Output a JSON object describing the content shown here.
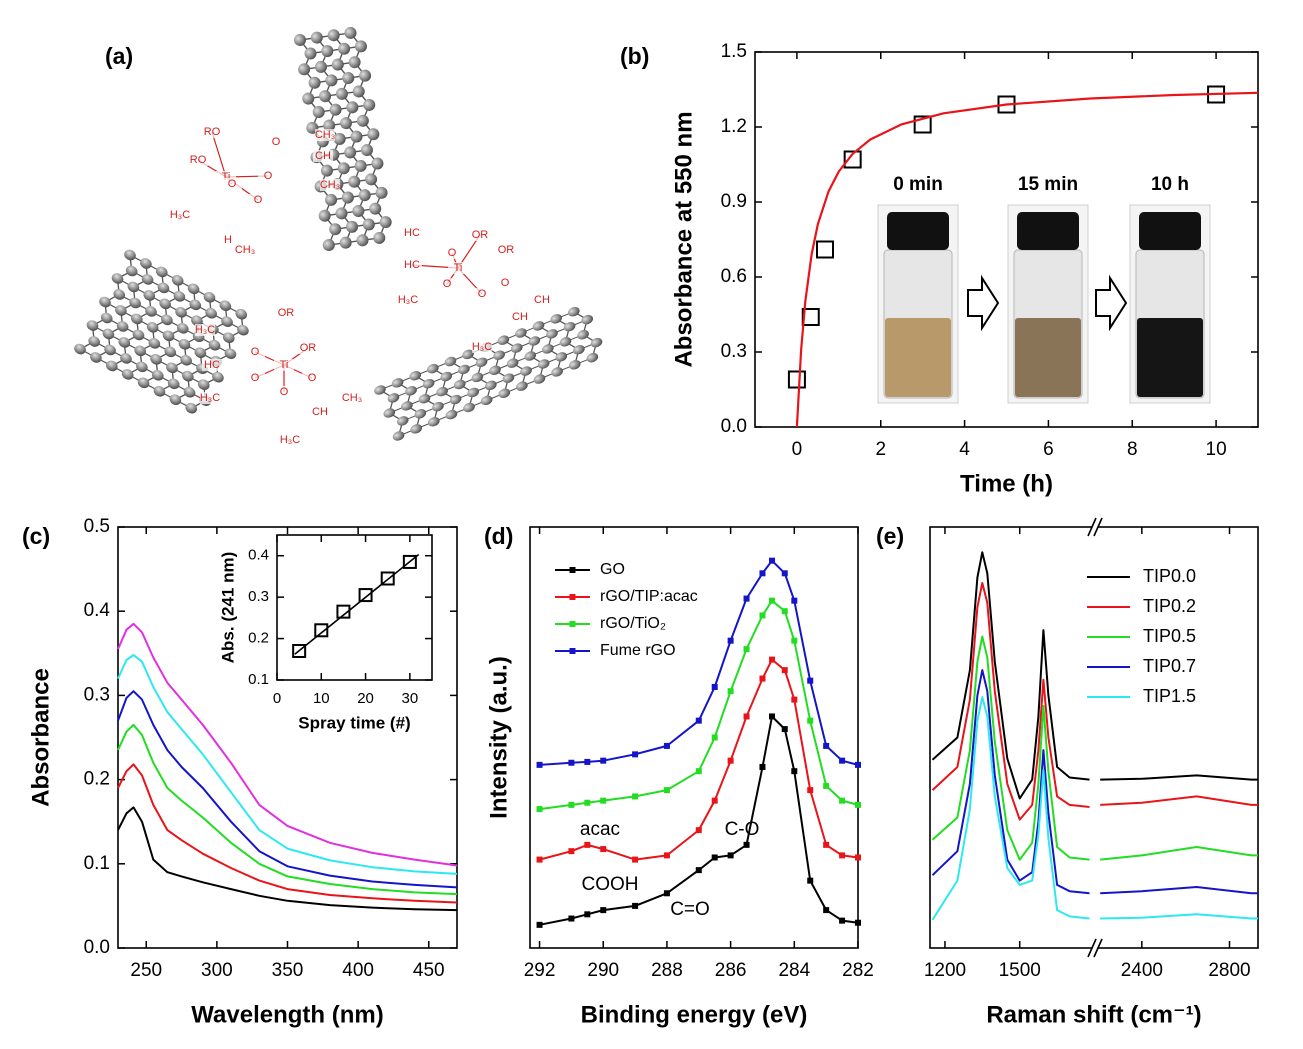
{
  "panel_a": {
    "panel_label": "(a)",
    "labels": [
      "RO",
      "RO",
      "Ti",
      "O",
      "O",
      "O",
      "O",
      "CH₃",
      "CH",
      "CH₃",
      "H₃C",
      "H",
      "CH₃",
      "HC",
      "O",
      "OR",
      "OR",
      "Ti",
      "HC",
      "O",
      "O",
      "H₃C",
      "O",
      "CH",
      "CH",
      "H₃C",
      "H₃C",
      "OR",
      "OR",
      "HC",
      "Ti",
      "O",
      "O",
      "H₃C",
      "O",
      "CH₃",
      "O",
      "CH",
      "H₃C"
    ]
  },
  "chart_data": [
    {
      "type": "scatter",
      "panel_label": "(b)",
      "xlabel": "Time (h)",
      "ylabel": "Absorbance at 550 nm",
      "xlim": [
        -1,
        11
      ],
      "ylim": [
        0,
        1.5
      ],
      "xticks": [
        0,
        2,
        4,
        6,
        8,
        10
      ],
      "yticks": [
        {
          "value": 0,
          "label": "0.0"
        },
        0.3,
        0.6,
        0.9,
        1.2,
        1.5
      ],
      "series": [
        {
          "style": "markers",
          "marker": "square",
          "color": "#000000",
          "x": [
            0,
            0.33,
            0.67,
            1.33,
            3,
            5,
            10
          ],
          "values": [
            0.19,
            0.44,
            0.71,
            1.07,
            1.21,
            1.29,
            1.33
          ]
        },
        {
          "style": "line",
          "color": "#e8141a",
          "x": [
            0,
            0.1,
            0.2,
            0.35,
            0.5,
            0.75,
            1,
            1.33,
            1.75,
            2.5,
            3.5,
            5,
            7,
            9,
            11
          ],
          "values": [
            0,
            0.307,
            0.502,
            0.69,
            0.812,
            0.941,
            1.022,
            1.093,
            1.15,
            1.211,
            1.255,
            1.29,
            1.314,
            1.328,
            1.337
          ]
        }
      ],
      "inset_labels": [
        "0 min",
        "15 min",
        "10 h"
      ]
    },
    {
      "type": "line",
      "panel_label": "(c)",
      "xlabel": "Wavelength (nm)",
      "ylabel": "Absorbance",
      "xlim": [
        230,
        470
      ],
      "ylim": [
        0,
        0.5
      ],
      "xticks": [
        250,
        300,
        350,
        400,
        450
      ],
      "yticks": [
        {
          "value": 0,
          "label": "0.0"
        },
        0.1,
        0.2,
        0.3,
        0.4,
        0.5
      ],
      "x": [
        230,
        236,
        241,
        247,
        255,
        265,
        275,
        290,
        310,
        330,
        350,
        380,
        410,
        440,
        470
      ],
      "series": [
        {
          "color": "#000000",
          "values": [
            0.14,
            0.16,
            0.167,
            0.15,
            0.105,
            0.09,
            0.085,
            0.078,
            0.07,
            0.062,
            0.056,
            0.051,
            0.048,
            0.046,
            0.045
          ]
        },
        {
          "color": "#e8141a",
          "values": [
            0.19,
            0.21,
            0.218,
            0.205,
            0.17,
            0.14,
            0.128,
            0.112,
            0.095,
            0.08,
            0.07,
            0.063,
            0.059,
            0.056,
            0.054
          ]
        },
        {
          "color": "#22dd22",
          "values": [
            0.235,
            0.257,
            0.265,
            0.253,
            0.22,
            0.19,
            0.175,
            0.155,
            0.125,
            0.1,
            0.085,
            0.076,
            0.07,
            0.066,
            0.064
          ]
        },
        {
          "color": "#1414c8",
          "values": [
            0.27,
            0.297,
            0.305,
            0.295,
            0.265,
            0.235,
            0.215,
            0.19,
            0.15,
            0.115,
            0.097,
            0.086,
            0.079,
            0.075,
            0.072
          ]
        },
        {
          "color": "#2ee8f0",
          "values": [
            0.32,
            0.342,
            0.348,
            0.34,
            0.31,
            0.28,
            0.26,
            0.23,
            0.185,
            0.14,
            0.118,
            0.104,
            0.096,
            0.091,
            0.088
          ]
        },
        {
          "color": "#e030e0",
          "values": [
            0.355,
            0.378,
            0.385,
            0.375,
            0.345,
            0.315,
            0.295,
            0.265,
            0.22,
            0.17,
            0.145,
            0.125,
            0.113,
            0.105,
            0.098
          ]
        }
      ]
    },
    {
      "type": "scatter",
      "xlabel": "Spray time (#)",
      "ylabel": "Abs. (241 nm)",
      "xlim": [
        0,
        35
      ],
      "ylim": [
        0.1,
        0.45
      ],
      "xticks": [
        0,
        10,
        20,
        30
      ],
      "yticks": [
        0.1,
        0.2,
        0.3,
        0.4
      ],
      "series": [
        {
          "style": "markers",
          "marker": "square",
          "color": "#000000",
          "x": [
            5,
            10,
            15,
            20,
            25,
            30
          ],
          "values": [
            0.17,
            0.22,
            0.265,
            0.305,
            0.345,
            0.385
          ]
        },
        {
          "style": "line",
          "color": "#000000",
          "x": [
            4,
            32
          ],
          "values": [
            0.162,
            0.403
          ]
        }
      ]
    },
    {
      "type": "line",
      "panel_label": "(d)",
      "xlabel": "Binding energy (eV)",
      "ylabel": "Intensity (a.u.)",
      "xlim": [
        292.3,
        282
      ],
      "ylim": [
        0,
        10
      ],
      "xticks": [
        292,
        290,
        288,
        286,
        284,
        282
      ],
      "x": [
        292,
        291,
        290.5,
        290,
        289,
        288,
        287,
        286.5,
        286,
        285.5,
        285,
        284.7,
        284.3,
        284,
        283.5,
        283,
        282.5,
        282
      ],
      "series": [
        {
          "name": "GO",
          "color": "#000000",
          "values": [
            0.55,
            0.7,
            0.8,
            0.9,
            1.0,
            1.3,
            1.85,
            2.15,
            2.2,
            2.45,
            4.3,
            5.5,
            5.2,
            4.2,
            1.6,
            0.9,
            0.65,
            0.6
          ]
        },
        {
          "name": "rGO/TIP:acac",
          "color": "#e8141a",
          "values": [
            2.1,
            2.3,
            2.45,
            2.35,
            2.1,
            2.2,
            2.8,
            3.5,
            4.45,
            5.5,
            6.4,
            6.85,
            6.6,
            5.9,
            3.75,
            2.45,
            2.2,
            2.15
          ]
        },
        {
          "name": "rGO/TiO₂",
          "color": "#22dd22",
          "values": [
            3.3,
            3.4,
            3.45,
            3.5,
            3.6,
            3.75,
            4.2,
            5.0,
            6.1,
            7.1,
            7.9,
            8.25,
            8.0,
            7.3,
            5.4,
            3.85,
            3.5,
            3.4
          ]
        },
        {
          "name": "Fume rGO",
          "color": "#1414c8",
          "values": [
            4.35,
            4.4,
            4.42,
            4.45,
            4.6,
            4.8,
            5.4,
            6.2,
            7.3,
            8.3,
            8.9,
            9.2,
            8.9,
            8.25,
            6.35,
            4.8,
            4.45,
            4.35
          ]
        }
      ],
      "annotations": [
        "acac",
        "COOH",
        "C=O",
        "C-O"
      ]
    },
    {
      "type": "line",
      "panel_label": "(e)",
      "xlabel": "Raman shift (cm⁻¹)",
      "xlim": [
        1140,
        2930
      ],
      "xbreak": [
        1790,
        2200
      ],
      "ylim": [
        0,
        10
      ],
      "xticks": [
        1200,
        1500,
        2400,
        2800
      ],
      "x": [
        1150,
        1250,
        1300,
        1330,
        1350,
        1370,
        1400,
        1450,
        1500,
        1550,
        1575,
        1595,
        1615,
        1650,
        1700,
        1780,
        2210,
        2400,
        2650,
        2900,
        2930
      ],
      "series": [
        {
          "name": "TIP0.0",
          "color": "#000000",
          "values": [
            4.47,
            5.0,
            6.6,
            8.8,
            9.4,
            8.9,
            6.8,
            4.5,
            3.55,
            4.0,
            5.5,
            7.55,
            6.0,
            4.3,
            4.05,
            4.0,
            4.0,
            4.02,
            4.1,
            4.0,
            4.0
          ]
        },
        {
          "name": "TIP0.2",
          "color": "#e8141a",
          "values": [
            3.75,
            4.3,
            5.9,
            8.1,
            8.67,
            8.2,
            6.1,
            3.9,
            3.05,
            3.4,
            4.7,
            6.37,
            5.0,
            3.6,
            3.4,
            3.35,
            3.4,
            3.45,
            3.6,
            3.4,
            3.4
          ]
        },
        {
          "name": "TIP0.5",
          "color": "#22dd22",
          "values": [
            2.57,
            3.1,
            4.7,
            6.8,
            7.4,
            6.9,
            4.9,
            2.8,
            2.1,
            2.5,
            3.9,
            5.75,
            4.2,
            2.4,
            2.15,
            2.1,
            2.1,
            2.2,
            2.4,
            2.2,
            2.2
          ]
        },
        {
          "name": "TIP0.7",
          "color": "#1414c8",
          "values": [
            1.73,
            2.3,
            3.9,
            6.0,
            6.6,
            6.1,
            4.1,
            2.1,
            1.6,
            1.8,
            3.0,
            4.7,
            3.2,
            1.5,
            1.35,
            1.3,
            1.3,
            1.35,
            1.45,
            1.3,
            1.3
          ]
        },
        {
          "name": "TIP1.5",
          "color": "#2ee8f0",
          "values": [
            0.67,
            1.6,
            3.3,
            5.4,
            5.96,
            5.5,
            3.6,
            1.9,
            1.5,
            1.6,
            2.7,
            4.23,
            2.6,
            0.9,
            0.75,
            0.7,
            0.7,
            0.72,
            0.8,
            0.7,
            0.7
          ]
        }
      ]
    }
  ]
}
